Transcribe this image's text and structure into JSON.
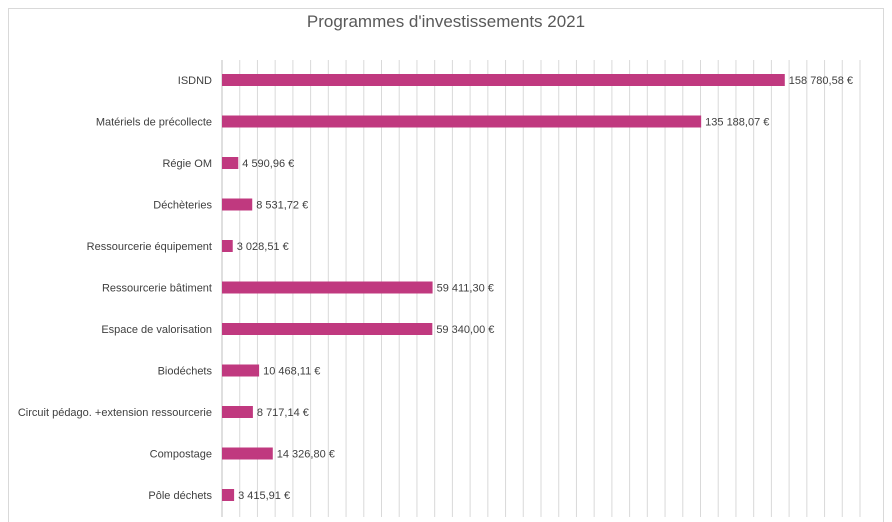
{
  "chart_data": {
    "type": "bar",
    "orientation": "horizontal",
    "title": "Programmes d'investissements 2021",
    "categories": [
      "ISDND",
      "Matériels de précollecte",
      "Régie OM",
      "Déchèteries",
      "Ressourcerie équipement",
      "Ressourcerie bâtiment",
      "Espace de valorisation",
      "Biodéchets",
      "Circuit pédago. +extension ressourcerie",
      "Compostage",
      "Pôle déchets"
    ],
    "values": [
      158780.58,
      135188.07,
      4590.96,
      8531.72,
      3028.51,
      59411.3,
      59340.0,
      10468.11,
      8717.14,
      14326.8,
      3415.91
    ],
    "value_labels": [
      "158 780,58 €",
      "135 188,07 €",
      "4 590,96 €",
      "8 531,72 €",
      "3 028,51 €",
      "59 411,30 €",
      "59 340,00 €",
      "10 468,11 €",
      "8 717,14 €",
      "14 326,80 €",
      "3 415,91 €"
    ],
    "xlim": [
      0,
      180000
    ],
    "grid": true,
    "bar_color": "#c0397f",
    "grid_color": "#d9d9d9"
  }
}
